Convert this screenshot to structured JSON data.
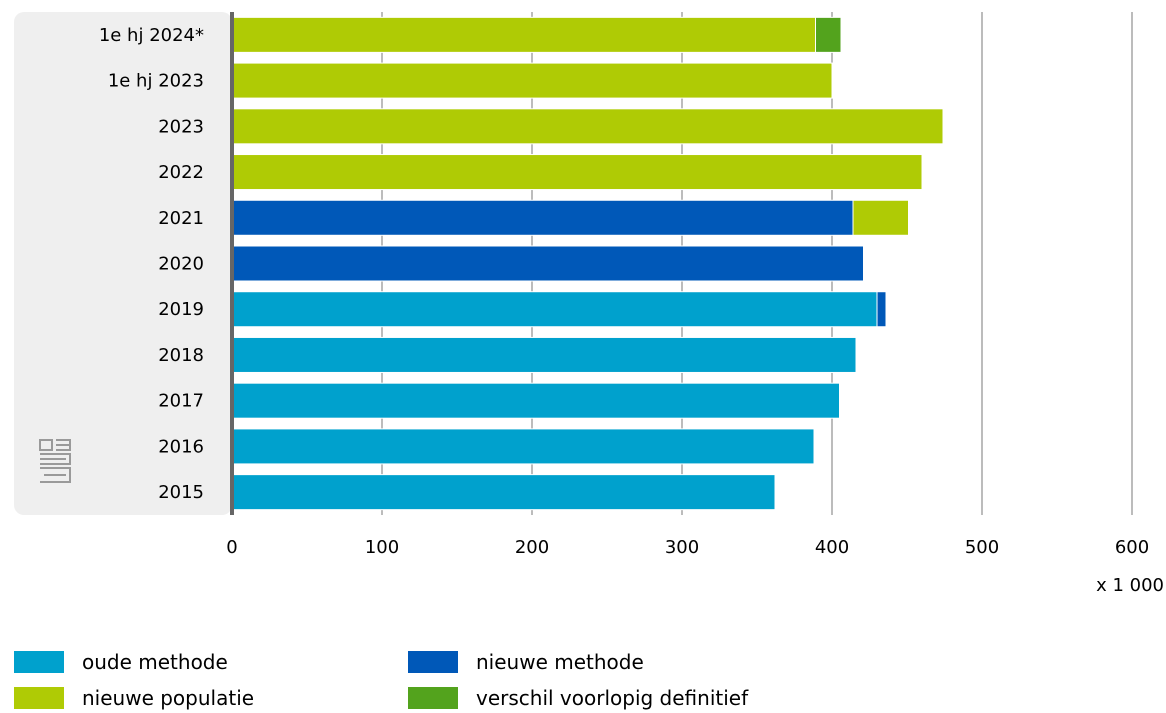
{
  "chart_data": {
    "type": "bar",
    "orientation": "horizontal",
    "stacked": true,
    "categories": [
      "1e hj 2024*",
      "1e hj 2023",
      "2023",
      "2022",
      "2021",
      "2020",
      "2019",
      "2018",
      "2017",
      "2016",
      "2015"
    ],
    "series": [
      {
        "name": "oude methode",
        "color": "#00A1CD",
        "values": [
          0,
          0,
          0,
          0,
          0,
          0,
          430,
          416,
          405,
          388,
          362
        ]
      },
      {
        "name": "nieuwe methode",
        "color": "#0058B8",
        "values": [
          0,
          0,
          0,
          0,
          414,
          421,
          6,
          0,
          0,
          0,
          0
        ]
      },
      {
        "name": "nieuwe populatie",
        "color": "#AFCB05",
        "values": [
          389,
          400,
          474,
          460,
          37,
          0,
          0,
          0,
          0,
          0,
          0
        ]
      },
      {
        "name": "verschil voorlopig definitief",
        "color": "#53A31D",
        "values": [
          17,
          0,
          0,
          0,
          0,
          0,
          0,
          0,
          0,
          0,
          0
        ]
      }
    ],
    "xlim": [
      0,
      600
    ],
    "xticks": [
      "0",
      "100",
      "200",
      "300",
      "400",
      "500",
      "600"
    ],
    "xunit": "x 1 000",
    "grid": true,
    "legend_position": "bottom"
  }
}
